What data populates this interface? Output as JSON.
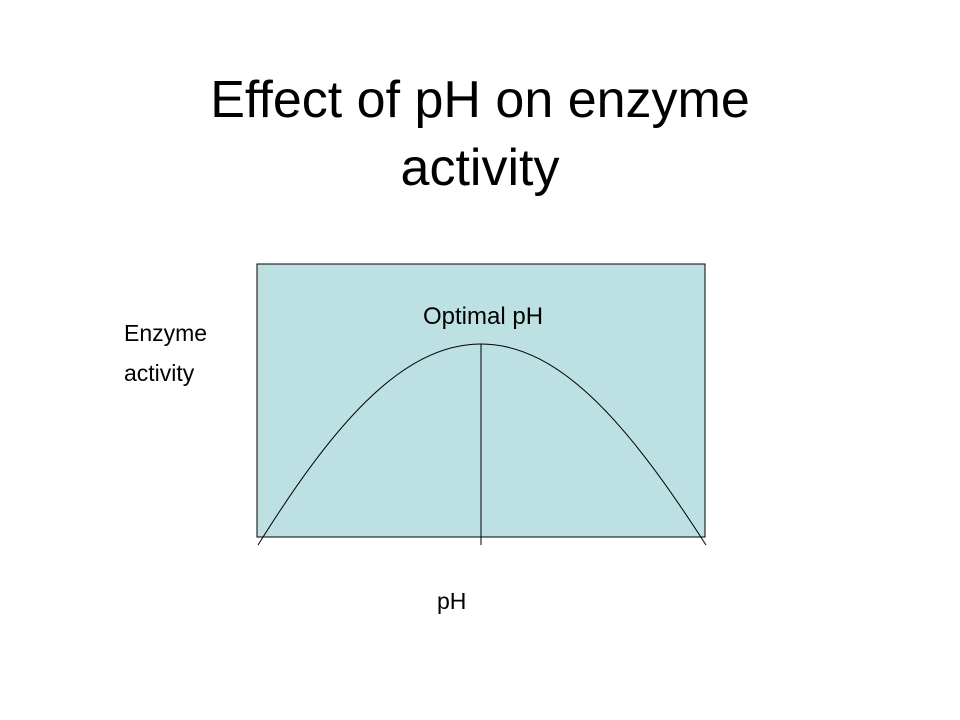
{
  "title": "Effect of pH on enzyme activity",
  "diagram": {
    "y_label": "Enzyme activity",
    "x_label": "pH",
    "peak_label": "Optimal pH"
  }
}
